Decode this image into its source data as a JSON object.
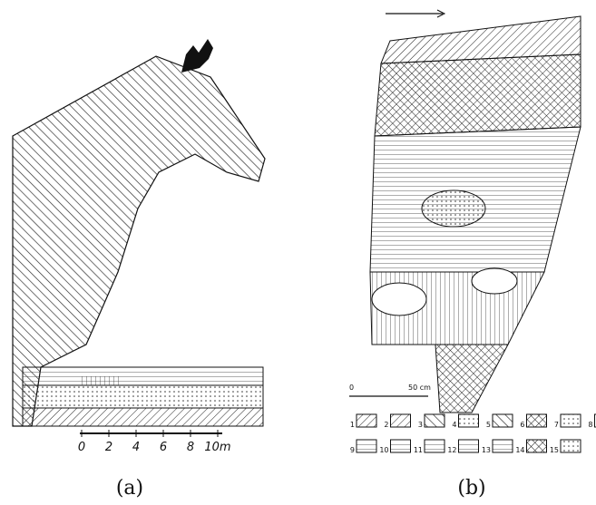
{
  "panels": [
    {
      "label": "(a)",
      "scale": [
        "0",
        "2",
        "4",
        "6",
        "8",
        "10m"
      ]
    },
    {
      "label": "(b)",
      "scale": [
        "0",
        "50 cm"
      ],
      "legend": [
        "1",
        "2",
        "3",
        "4",
        "5",
        "6",
        "7",
        "8",
        "9",
        "10",
        "11",
        "12",
        "13",
        "14",
        "15"
      ]
    }
  ]
}
